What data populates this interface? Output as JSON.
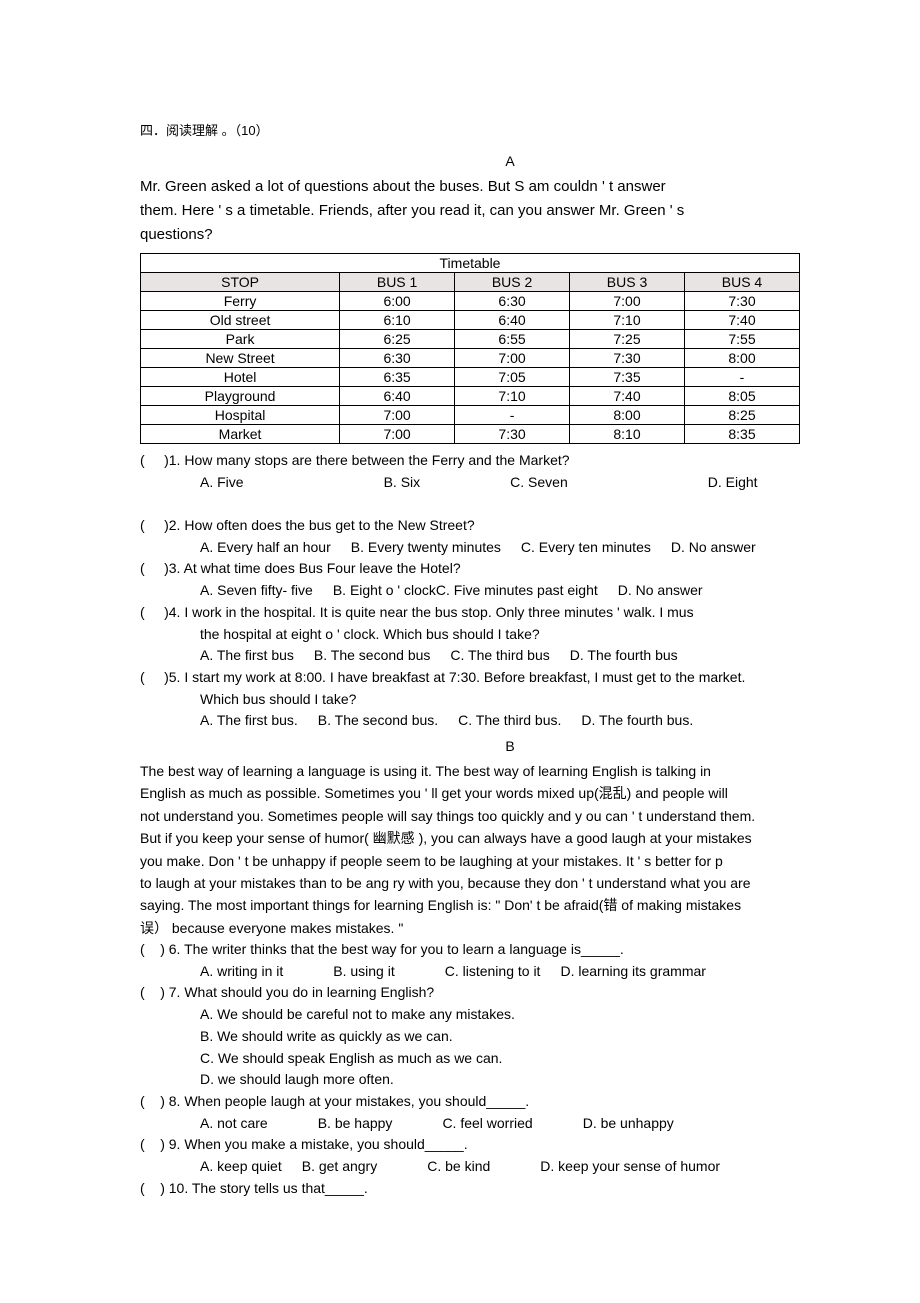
{
  "section_title": "四．阅读理解 。（10）",
  "passageA": {
    "label": "A",
    "intro_lines": [
      "  Mr. Green asked a lot of questions about the buses. But S      am couldn ' t answer",
      "them. Here   ' s a timetable. Friends, after you read  it, can you answer Mr. Green        ' s",
      "questions?"
    ],
    "table": {
      "title": "Timetable",
      "headers": [
        "STOP",
        "BUS 1",
        "BUS 2",
        "BUS 3",
        "BUS 4"
      ],
      "rows": [
        [
          "Ferry",
          "6:00",
          "6:30",
          "7:00",
          "7:30"
        ],
        [
          "Old street",
          "6:10",
          "6:40",
          "7:10",
          "7:40"
        ],
        [
          "Park",
          "6:25",
          "6:55",
          "7:25",
          "7:55"
        ],
        [
          "New Street",
          "6:30",
          "7:00",
          "7:30",
          "8:00"
        ],
        [
          "Hotel",
          "6:35",
          "7:05",
          "7:35",
          "-"
        ],
        [
          "Playground",
          "6:40",
          "7:10",
          "7:40",
          "8:05"
        ],
        [
          "Hospital",
          "7:00",
          "-",
          "8:00",
          "8:25"
        ],
        [
          "Market",
          "7:00",
          "7:30",
          "8:10",
          "8:35"
        ]
      ]
    },
    "questions": [
      {
        "num": "1",
        "stem": "How many stops are there between the Ferry and the Market?",
        "opts": [
          "A. Five",
          "B. Six",
          "C. Seven",
          "D. Eight"
        ],
        "gaps": [
          "gap-xl",
          "gap-lg",
          "gap-xl",
          "gap-xl"
        ]
      },
      {
        "num": "2",
        "stem": "How often does the bus get to the New Street?",
        "opts": [
          "A. Every half an hour",
          "B. Every twenty minutes",
          "C. Every ten minutes",
          "D. No answer"
        ],
        "gaps": [
          "gap-sm",
          "gap-sm",
          "gap-sm",
          ""
        ]
      },
      {
        "num": "3",
        "stem": "At what time does Bus Four leave the Hotel?",
        "opts": [
          "A. Seven fifty- five",
          "B. Eight o       ' clock",
          "C. Five minutes past eight",
          "D. No answer"
        ],
        "gaps": [
          "gap-sm",
          "",
          "gap-sm",
          ""
        ]
      },
      {
        "num": "4",
        "stem": "I work in the hospital. It is quite near the bus stop. Only three minutes                               '  walk. I mus",
        "stem2": "the hospital at eight o         ' clock. Which bus should I take?",
        "opts": [
          "A. The first bus",
          "B. The second bus",
          "C. The third bus",
          "D. The fourth bus"
        ],
        "gaps": [
          "gap-sm",
          "gap-sm",
          "gap-sm",
          ""
        ]
      },
      {
        "num": "5",
        "stem": "I start my work at 8:00. I have breakfast at 7:30. Before breakfast, I must get to the market.",
        "stem2": "Which bus should I take?",
        "opts": [
          "A. The first bus.",
          "B. The second bus.",
          "C. The third bus.",
          "D. The fourth bus."
        ],
        "gaps": [
          "gap-sm",
          "gap-sm",
          "gap-sm",
          ""
        ]
      }
    ]
  },
  "passageB": {
    "label": "B",
    "lines": [
      "     The best way of learning a language is using it. The best way of learning English is talking in",
      "English as much as possible. Sometimes you                ' ll get your words mixed up(混乱) and people will",
      "not understand you. Sometimes people will say things too quickly and y    ou can  ' t understand them.",
      "But if you keep your sense of humor(  幽默感 ), you can always have a good laugh at your mistakes",
      "you make. Don    ' t be unhappy if people seem to be laughing at your mistakes. It                      ' s better for p",
      "to laugh at your mistakes than to be ang   ry with you, because they don             ' t understand what you are",
      "saying. The most important things for learning English is:                          \" Don' t be afraid(错 of making mistakes",
      "误）   because everyone makes mistakes.    \""
    ],
    "questions": [
      {
        "num": "6",
        "stem": "The writer thinks that the best way for you to learn a language is_____.",
        "opts": [
          "A. writing in it",
          "B. using it",
          "C. listening to it",
          "D. learning its grammar"
        ],
        "gaps": [
          "gap-md",
          "gap-md",
          "gap-sm",
          ""
        ]
      },
      {
        "num": "7",
        "stem": "What should you do in learning English?",
        "opts_v": [
          "A. We should be careful not to make any mistakes.",
          "B. We should write as quickly as we can.",
          "C. We should speak English as much as we can.",
          "D. we should laugh more often."
        ]
      },
      {
        "num": "8",
        "stem": "When people laugh at your mistakes, you should_____.",
        "opts": [
          "A. not care",
          "B. be happy",
          "C. feel worried",
          "D. be unhappy"
        ],
        "gaps": [
          "gap-md",
          "gap-md",
          "gap-md",
          ""
        ]
      },
      {
        "num": "9",
        "stem": "When you make a mistake, you should_____.",
        "opts": [
          "A. keep quiet",
          "B. get angry",
          "C. be kind",
          "D. keep your sense of humor"
        ],
        "gaps": [
          "gap-sm",
          "gap-md",
          "gap-md",
          ""
        ]
      },
      {
        "num": "10",
        "stem": "The story tells us that_____."
      }
    ]
  }
}
